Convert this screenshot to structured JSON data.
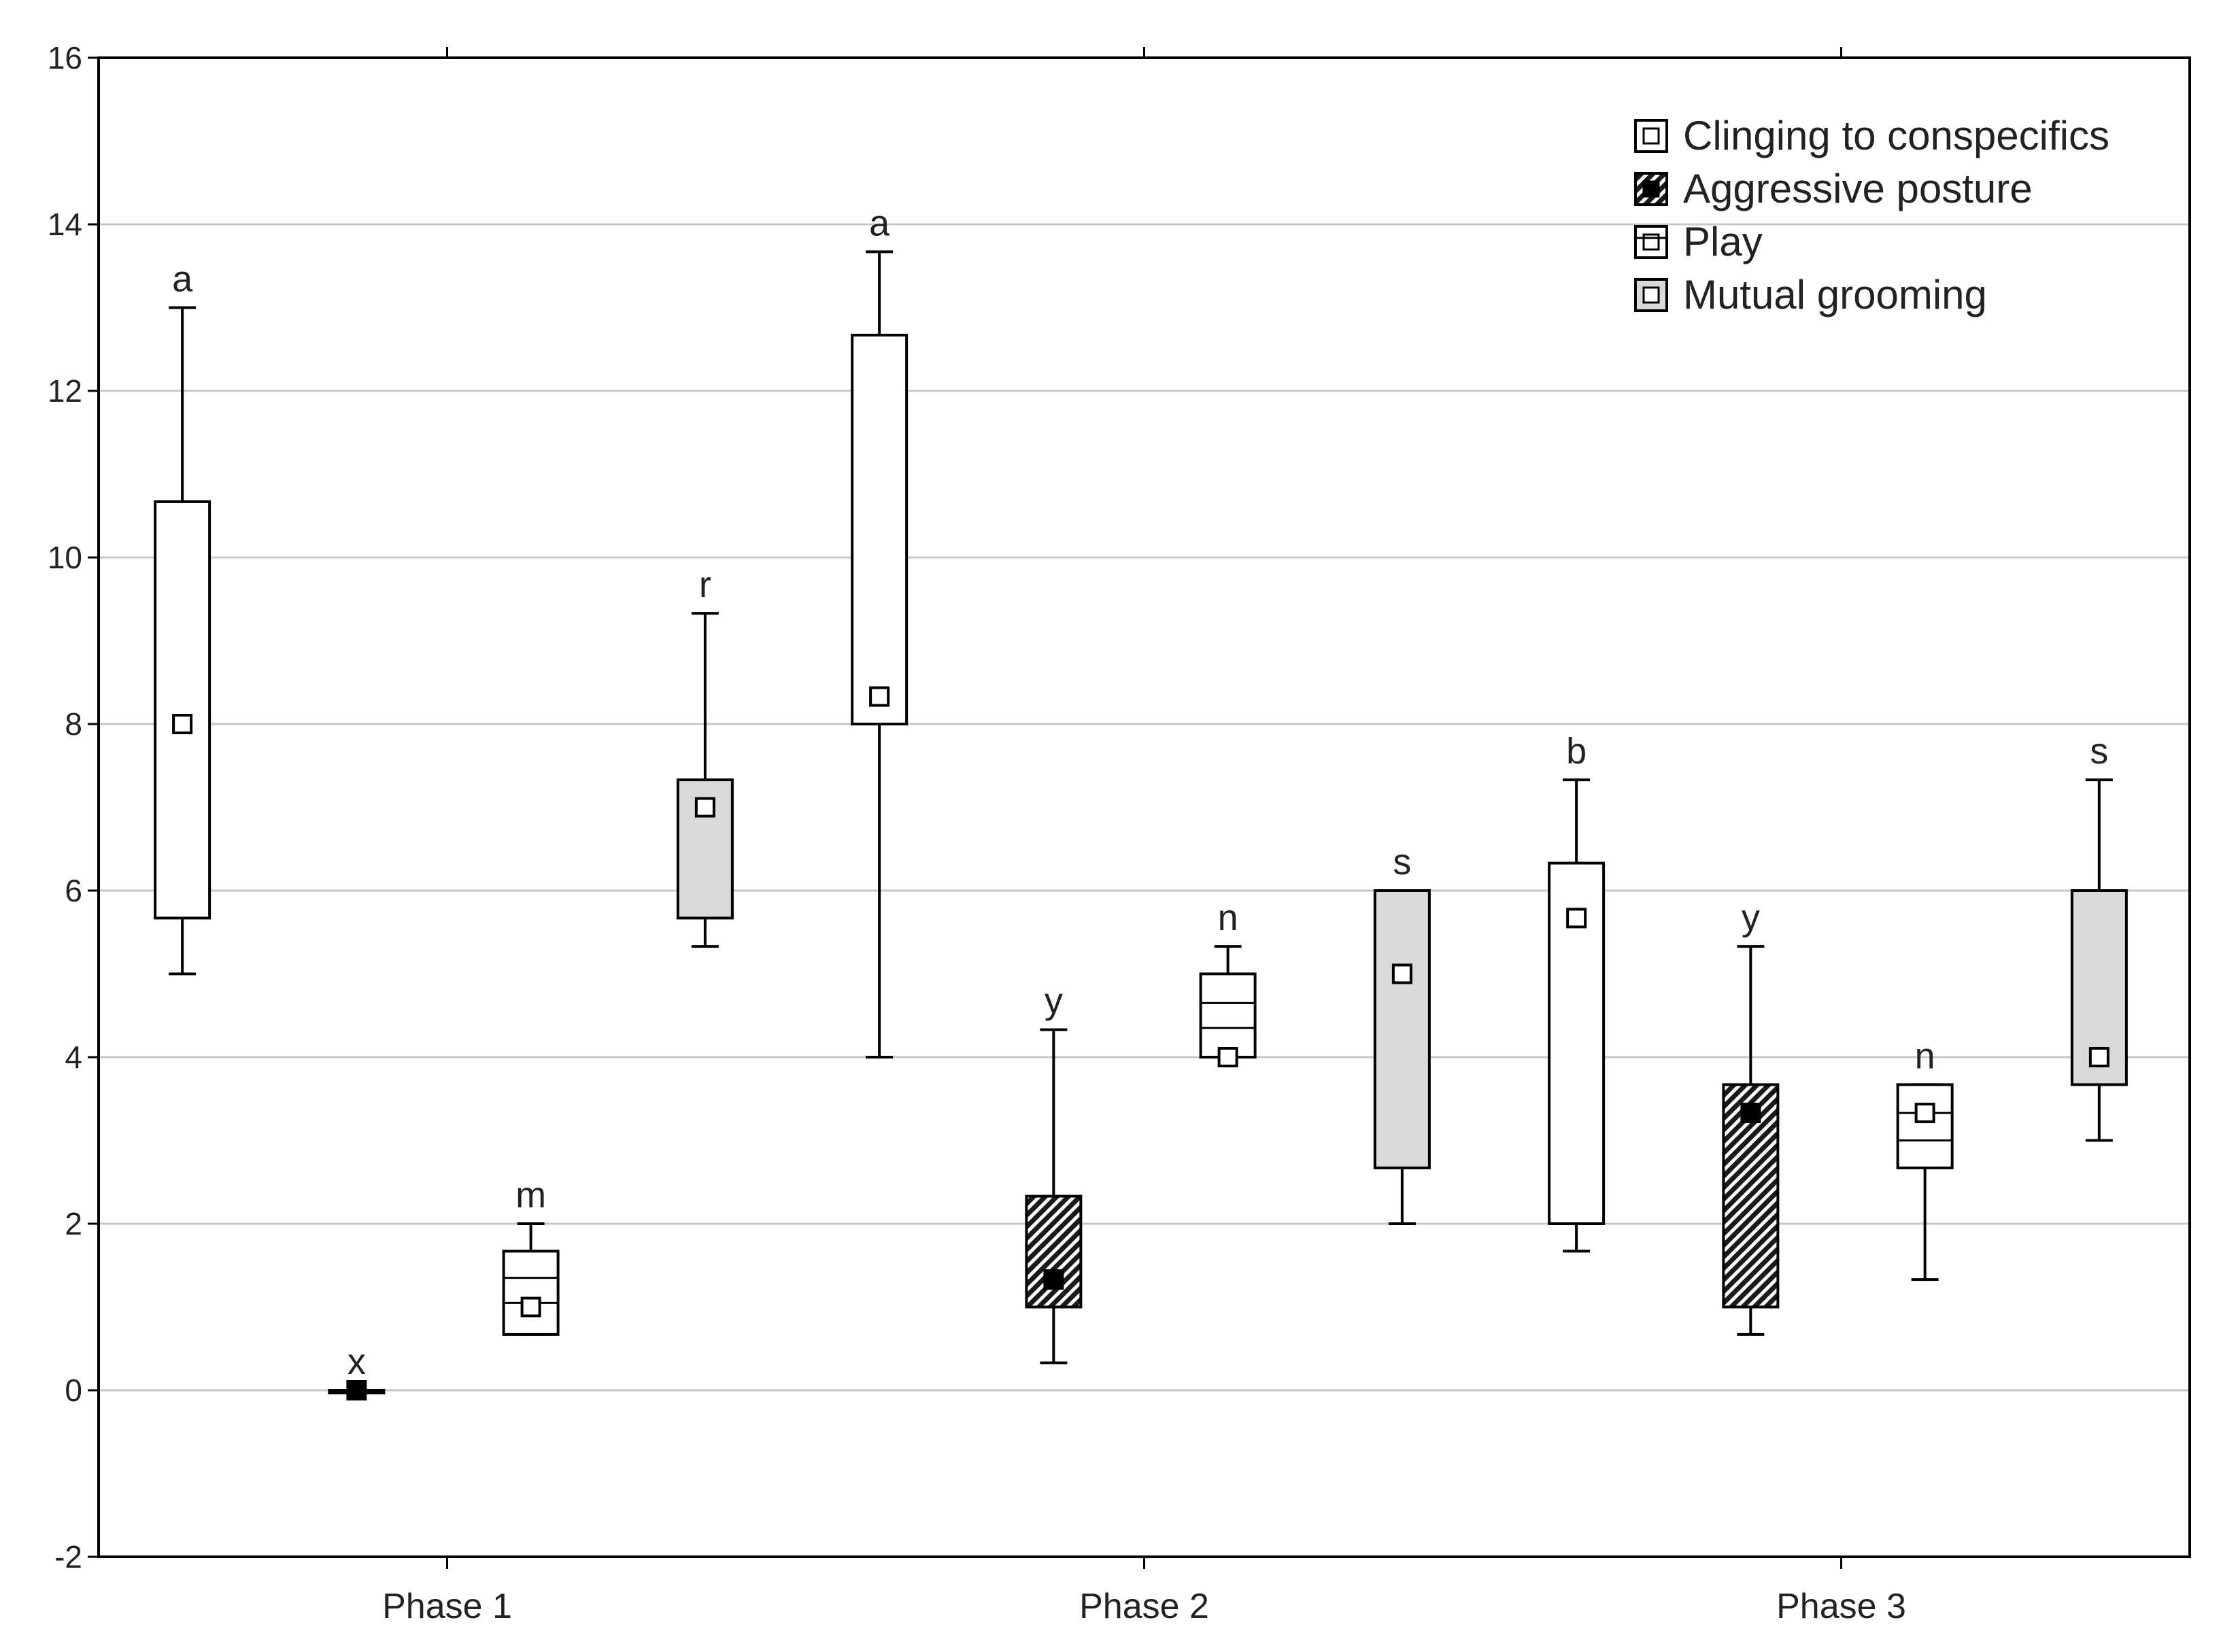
{
  "chart_data": {
    "type": "box",
    "title": "",
    "xlabel": "",
    "ylabel": "",
    "ylim": [
      -2,
      16
    ],
    "yticks": [
      -2,
      0,
      2,
      4,
      6,
      8,
      10,
      12,
      14,
      16
    ],
    "grid": true,
    "legend_position": "top-right",
    "categories": [
      "Phase 1",
      "Phase 2",
      "Phase 3"
    ],
    "series": [
      {
        "name": "Clinging to conspecifics",
        "style": "open",
        "fill": "#ffffff",
        "boxes": [
          {
            "category": "Phase 1",
            "whisker_low": 5,
            "q1": 5.67,
            "median": 8,
            "q3": 10.67,
            "whisker_high": 13,
            "median_line": false,
            "letter": "a"
          },
          {
            "category": "Phase 2",
            "whisker_low": 4,
            "q1": 8,
            "median": 8.33,
            "q3": 12.67,
            "whisker_high": 13.67,
            "median_line": false,
            "letter": "a"
          },
          {
            "category": "Phase 3",
            "whisker_low": 1.67,
            "q1": 2,
            "median": 5.67,
            "q3": 6.33,
            "whisker_high": 7.33,
            "median_line": false,
            "letter": "b"
          }
        ]
      },
      {
        "name": "Aggressive posture",
        "style": "hatched",
        "fill": "#222222",
        "boxes": [
          {
            "category": "Phase 1",
            "whisker_low": 0,
            "q1": 0,
            "median": 0,
            "q3": 0,
            "whisker_high": 0,
            "median_line": false,
            "letter": "x"
          },
          {
            "category": "Phase 2",
            "whisker_low": 0.33,
            "q1": 1,
            "median": 1.33,
            "q3": 2.33,
            "whisker_high": 4.33,
            "median_line": false,
            "letter": "y"
          },
          {
            "category": "Phase 3",
            "whisker_low": 0.67,
            "q1": 1,
            "median": 3.33,
            "q3": 3.67,
            "whisker_high": 5.33,
            "median_line": false,
            "letter": "y"
          }
        ]
      },
      {
        "name": "Play",
        "style": "lined",
        "fill": "#ffffff",
        "boxes": [
          {
            "category": "Phase 1",
            "whisker_low": 0.67,
            "q1": 0.67,
            "median": 1,
            "q3": 1.67,
            "whisker_high": 2,
            "median_line": true,
            "inner_lines": [
              1.05,
              1.35
            ],
            "letter": "m"
          },
          {
            "category": "Phase 2",
            "whisker_low": 4,
            "q1": 4,
            "median": 4,
            "q3": 5,
            "whisker_high": 5.33,
            "median_line": true,
            "inner_lines": [
              4.35,
              4.65
            ],
            "letter": "n"
          },
          {
            "category": "Phase 3",
            "whisker_low": 1.33,
            "q1": 2.67,
            "median": 3.33,
            "q3": 3.67,
            "whisker_high": 3.67,
            "median_line": true,
            "inner_lines": [
              3.0,
              3.33
            ],
            "letter": "n"
          }
        ]
      },
      {
        "name": "Mutual grooming",
        "style": "gray",
        "fill": "#d9d9d9",
        "boxes": [
          {
            "category": "Phase 1",
            "whisker_low": 5.33,
            "q1": 5.67,
            "median": 7,
            "q3": 7.33,
            "whisker_high": 9.33,
            "median_line": false,
            "letter": "r"
          },
          {
            "category": "Phase 2",
            "whisker_low": 2,
            "q1": 2.67,
            "median": 5,
            "q3": 6,
            "whisker_high": 6,
            "median_line": false,
            "letter": "s"
          },
          {
            "category": "Phase 3",
            "whisker_low": 3,
            "q1": 3.67,
            "median": 4,
            "q3": 6,
            "whisker_high": 7.33,
            "median_line": false,
            "letter": "s"
          }
        ]
      }
    ]
  }
}
